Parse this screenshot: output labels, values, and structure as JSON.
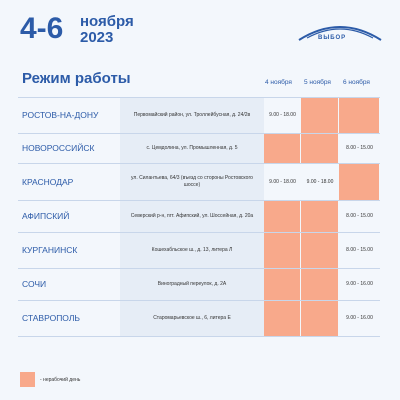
{
  "header": {
    "dates": "4-6",
    "month": "ноября",
    "year": "2023",
    "logo": "ВЫБОР"
  },
  "table": {
    "title": "Режим работы",
    "columns": [
      "4 ноября",
      "5 ноября",
      "6 ноября"
    ],
    "rows": [
      [
        "РОСТОВ-НА-ДОНУ",
        "Первомайский район, ул. Троллейбусная, д. 24/2в",
        "9.00 - 18.00",
        null,
        null
      ],
      [
        "НОВОРОССИЙСК",
        "с. Цемдолина, ул. Промышленная, д. 5",
        null,
        null,
        "8.00 - 15.00"
      ],
      [
        "КРАСНОДАР",
        "ул. Силантьева, 64/3 (въезд со стороны Ростовского шоссе)",
        "9.00 - 18.00",
        "9.00 - 18.00",
        null
      ],
      [
        "АФИПСКИЙ",
        "Северский р-н, пгт. Афипский, ул. Шоссейная, д. 20а",
        null,
        null,
        "8.00 - 15.00"
      ],
      [
        "КУРГАНИНСК",
        "Кошехабльское ш., д. 13, литера Л",
        null,
        null,
        "8.00 - 15.00"
      ],
      [
        "СОЧИ",
        "Виноградный переулок, д. 2А",
        null,
        null,
        "9.00 - 16.00"
      ],
      [
        "СТАВРОПОЛЬ",
        "Старомарьевское ш., 6, литера Е",
        null,
        null,
        "9.00 - 16.00"
      ]
    ]
  },
  "legend": {
    "label": "- нерабочий день"
  }
}
